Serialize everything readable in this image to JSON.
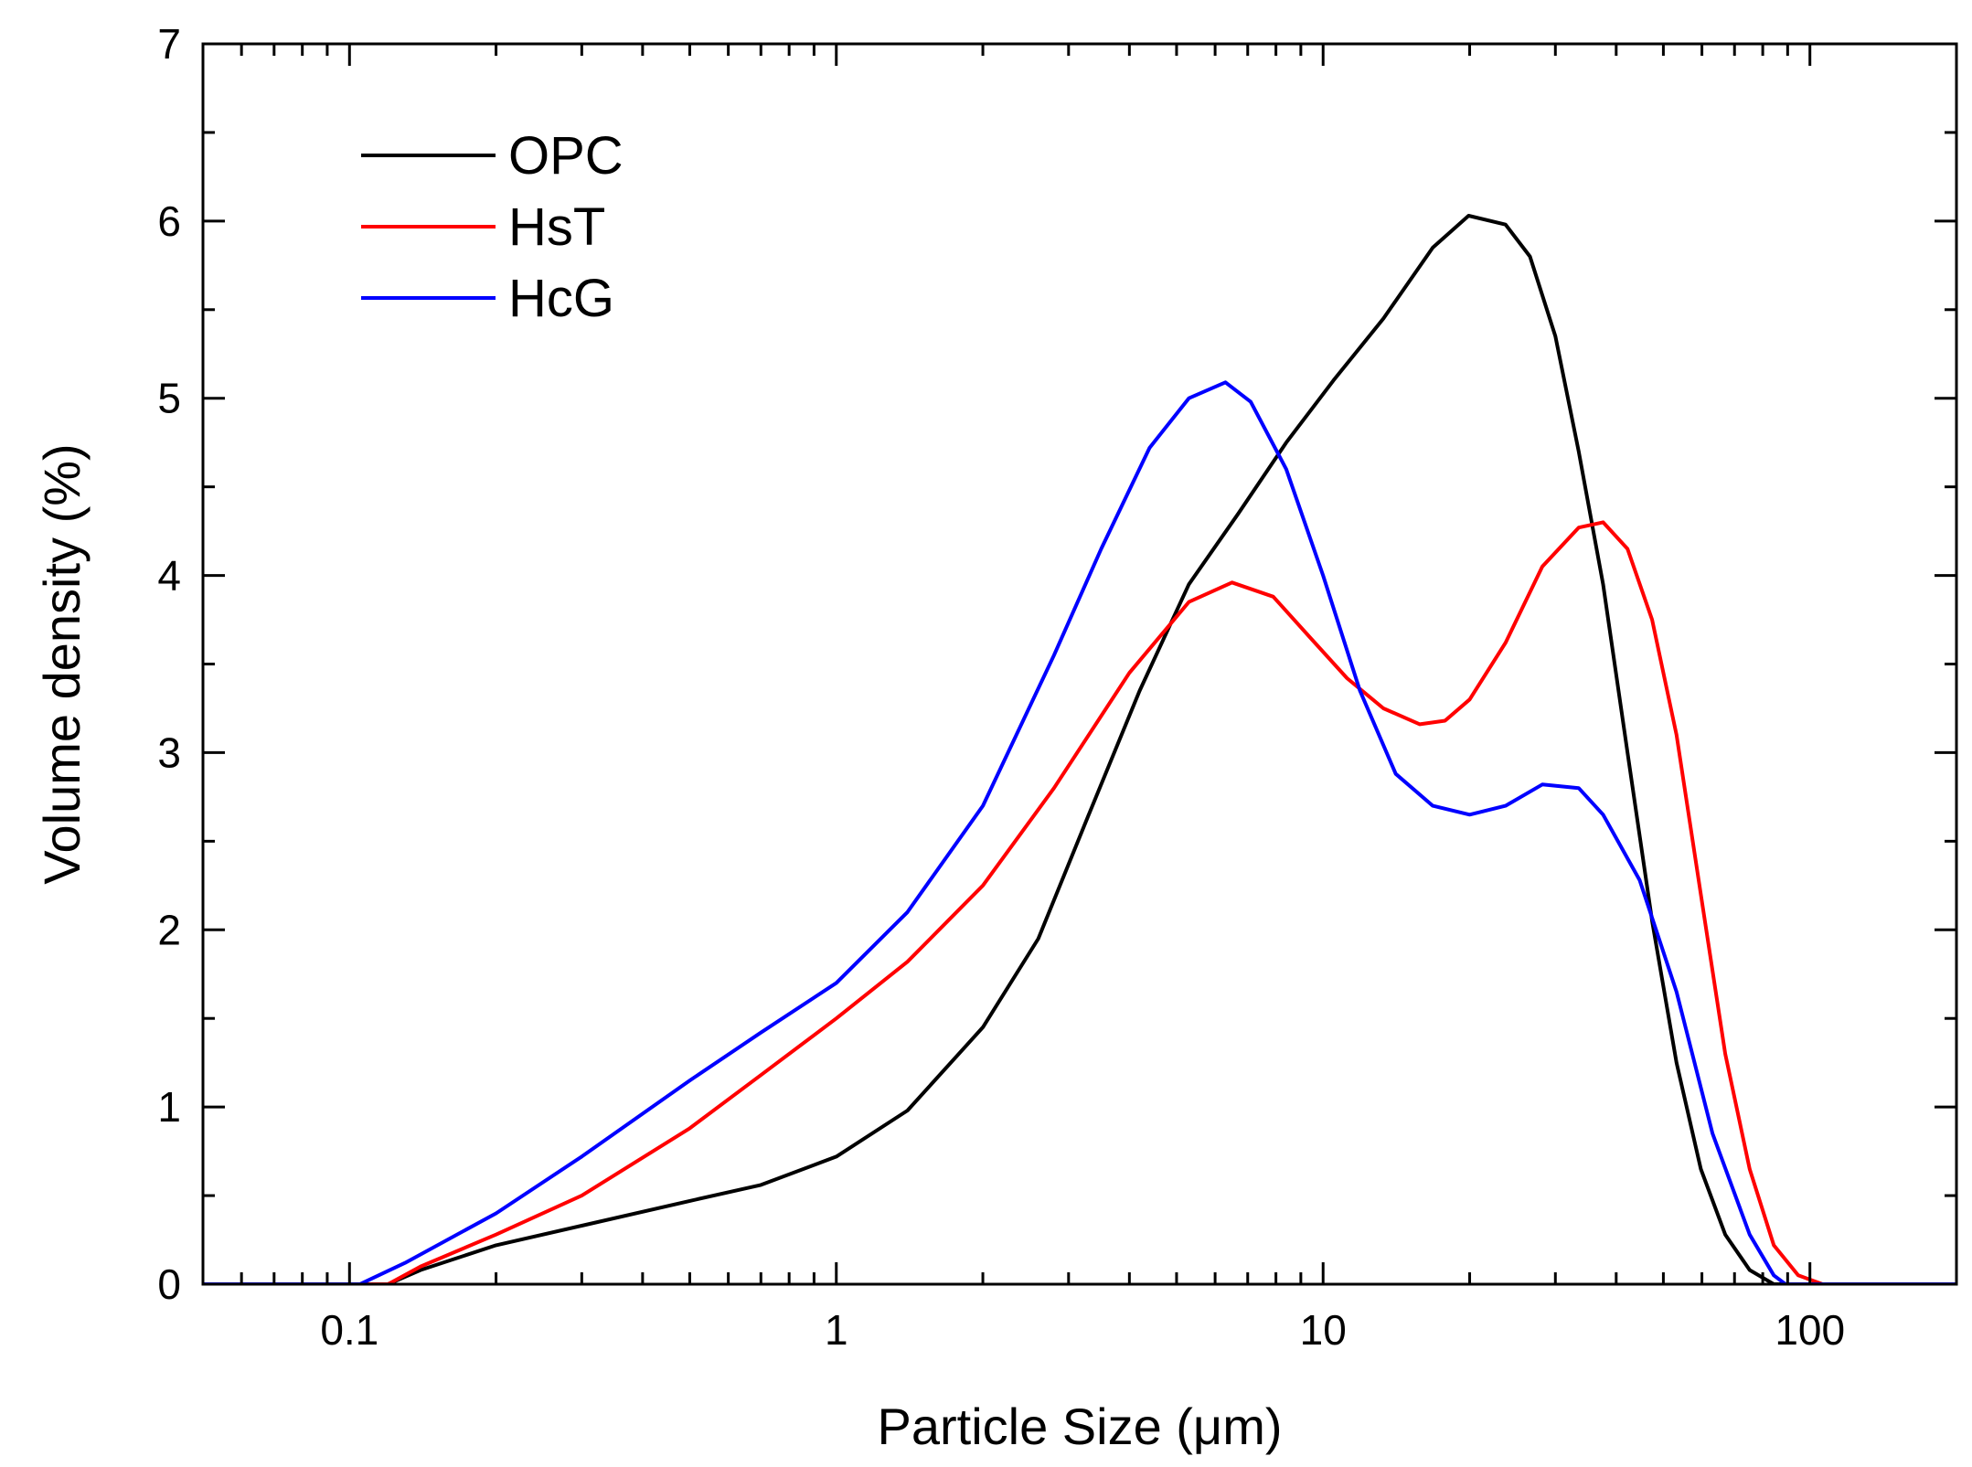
{
  "chart_data": {
    "type": "line",
    "title": "",
    "xlabel": "Particle Size (μm)",
    "ylabel": "Volume density (%)",
    "x_scale": "log",
    "xlim": [
      0.05,
      200
    ],
    "ylim": [
      0,
      7
    ],
    "grid": false,
    "legend_position": "top-left",
    "x_tick_labels": [
      {
        "value": 0.1,
        "label": "0.1"
      },
      {
        "value": 1,
        "label": "1"
      },
      {
        "value": 10,
        "label": "10"
      },
      {
        "value": 100,
        "label": "100"
      }
    ],
    "y_tick_labels": [
      {
        "value": 0,
        "label": "0"
      },
      {
        "value": 1,
        "label": "1"
      },
      {
        "value": 2,
        "label": "2"
      },
      {
        "value": 3,
        "label": "3"
      },
      {
        "value": 4,
        "label": "4"
      },
      {
        "value": 5,
        "label": "5"
      },
      {
        "value": 6,
        "label": "6"
      },
      {
        "value": 7,
        "label": "7"
      }
    ],
    "series": [
      {
        "name": "OPC",
        "color": "#000000",
        "points": [
          [
            0.05,
            0
          ],
          [
            0.12,
            0
          ],
          [
            0.14,
            0.08
          ],
          [
            0.2,
            0.22
          ],
          [
            0.3,
            0.33
          ],
          [
            0.5,
            0.47
          ],
          [
            0.7,
            0.56
          ],
          [
            1.0,
            0.72
          ],
          [
            1.4,
            0.98
          ],
          [
            2.0,
            1.45
          ],
          [
            2.6,
            1.95
          ],
          [
            3.3,
            2.65
          ],
          [
            4.2,
            3.35
          ],
          [
            5.3,
            3.95
          ],
          [
            6.7,
            4.35
          ],
          [
            8.4,
            4.75
          ],
          [
            10.5,
            5.1
          ],
          [
            13.3,
            5.45
          ],
          [
            16.8,
            5.85
          ],
          [
            19.9,
            6.03
          ],
          [
            23.7,
            5.98
          ],
          [
            26.6,
            5.8
          ],
          [
            30.0,
            5.35
          ],
          [
            33.5,
            4.7
          ],
          [
            37.6,
            3.95
          ],
          [
            42.2,
            3.0
          ],
          [
            47.4,
            2.05
          ],
          [
            53.2,
            1.25
          ],
          [
            59.7,
            0.65
          ],
          [
            67.0,
            0.28
          ],
          [
            75.2,
            0.08
          ],
          [
            84.3,
            0
          ],
          [
            200,
            0
          ]
        ]
      },
      {
        "name": "HsT",
        "color": "#ff0000",
        "points": [
          [
            0.05,
            0
          ],
          [
            0.12,
            0
          ],
          [
            0.14,
            0.1
          ],
          [
            0.2,
            0.28
          ],
          [
            0.3,
            0.5
          ],
          [
            0.5,
            0.88
          ],
          [
            0.7,
            1.18
          ],
          [
            1.0,
            1.5
          ],
          [
            1.4,
            1.82
          ],
          [
            2.0,
            2.25
          ],
          [
            2.8,
            2.8
          ],
          [
            4.0,
            3.45
          ],
          [
            5.3,
            3.85
          ],
          [
            6.5,
            3.96
          ],
          [
            7.9,
            3.88
          ],
          [
            9.4,
            3.65
          ],
          [
            11.2,
            3.42
          ],
          [
            13.3,
            3.25
          ],
          [
            15.8,
            3.16
          ],
          [
            17.8,
            3.18
          ],
          [
            20.0,
            3.3
          ],
          [
            23.7,
            3.62
          ],
          [
            28.2,
            4.05
          ],
          [
            33.5,
            4.27
          ],
          [
            37.6,
            4.3
          ],
          [
            42.2,
            4.15
          ],
          [
            47.4,
            3.75
          ],
          [
            53.2,
            3.1
          ],
          [
            59.7,
            2.2
          ],
          [
            67.0,
            1.3
          ],
          [
            75.2,
            0.65
          ],
          [
            84.3,
            0.22
          ],
          [
            94.6,
            0.05
          ],
          [
            106.2,
            0
          ],
          [
            200,
            0
          ]
        ]
      },
      {
        "name": "HcG",
        "color": "#0000ff",
        "points": [
          [
            0.05,
            0
          ],
          [
            0.105,
            0
          ],
          [
            0.13,
            0.12
          ],
          [
            0.2,
            0.4
          ],
          [
            0.3,
            0.72
          ],
          [
            0.5,
            1.15
          ],
          [
            0.7,
            1.42
          ],
          [
            1.0,
            1.7
          ],
          [
            1.4,
            2.1
          ],
          [
            2.0,
            2.7
          ],
          [
            2.8,
            3.55
          ],
          [
            3.5,
            4.15
          ],
          [
            4.4,
            4.72
          ],
          [
            5.3,
            5.0
          ],
          [
            6.3,
            5.09
          ],
          [
            7.1,
            4.98
          ],
          [
            8.4,
            4.6
          ],
          [
            10.0,
            4.0
          ],
          [
            11.9,
            3.35
          ],
          [
            14.1,
            2.88
          ],
          [
            16.8,
            2.7
          ],
          [
            20.0,
            2.65
          ],
          [
            23.7,
            2.7
          ],
          [
            28.2,
            2.82
          ],
          [
            33.5,
            2.8
          ],
          [
            37.6,
            2.65
          ],
          [
            44.7,
            2.28
          ],
          [
            53.2,
            1.65
          ],
          [
            63.1,
            0.85
          ],
          [
            75.2,
            0.28
          ],
          [
            84.3,
            0.05
          ],
          [
            89.1,
            0
          ],
          [
            200,
            0
          ]
        ]
      }
    ]
  }
}
